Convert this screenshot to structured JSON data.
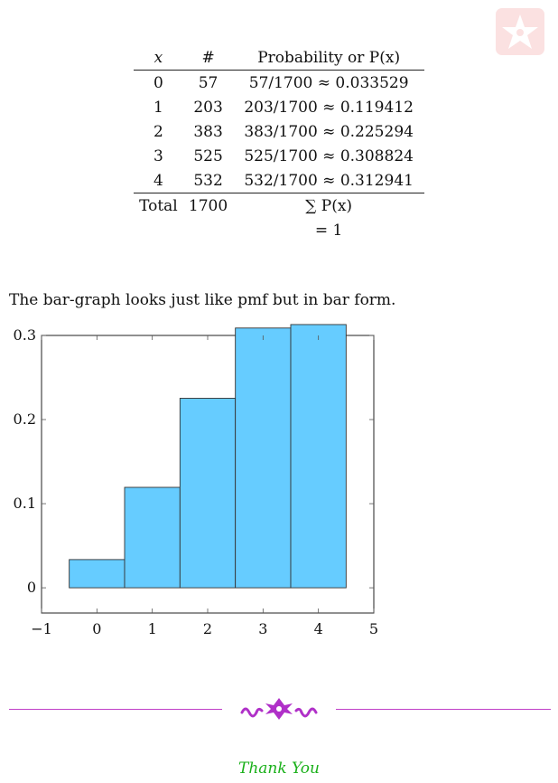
{
  "table": {
    "headers": [
      "x",
      "#",
      "Probability or P(x)"
    ],
    "rows": [
      {
        "x": "0",
        "count": "57",
        "prob": "57/1700 ≈ 0.033529"
      },
      {
        "x": "1",
        "count": "203",
        "prob": "203/1700 ≈ 0.119412"
      },
      {
        "x": "2",
        "count": "383",
        "prob": "383/1700 ≈ 0.225294"
      },
      {
        "x": "3",
        "count": "525",
        "prob": "525/1700 ≈ 0.308824"
      },
      {
        "x": "4",
        "count": "532",
        "prob": "532/1700 ≈ 0.312941"
      }
    ],
    "total": {
      "label": "Total",
      "count": "1700",
      "prob_line1": "∑ P(x)",
      "prob_line2": "= 1"
    }
  },
  "text": "The bar-graph looks just like pmf but in bar form.",
  "footer": {
    "thanks": "Thank You"
  },
  "colors": {
    "bar_fill": "#66ccff",
    "divider": "#c040c8",
    "thanks": "#1ab01a",
    "logo": "#f8d0d0"
  },
  "chart_data": {
    "type": "bar",
    "x": [
      0,
      1,
      2,
      3,
      4
    ],
    "values": [
      0.033529,
      0.119412,
      0.225294,
      0.308824,
      0.312941
    ],
    "bar_width": 1,
    "xlim": [
      -1,
      5
    ],
    "ylim": [
      -0.03,
      0.3
    ],
    "xticks": [
      "−1",
      "0",
      "1",
      "2",
      "3",
      "4",
      "5"
    ],
    "yticks": [
      "0",
      "0.1",
      "0.2",
      "0.3"
    ],
    "title": "",
    "xlabel": "",
    "ylabel": "",
    "grid": false
  }
}
